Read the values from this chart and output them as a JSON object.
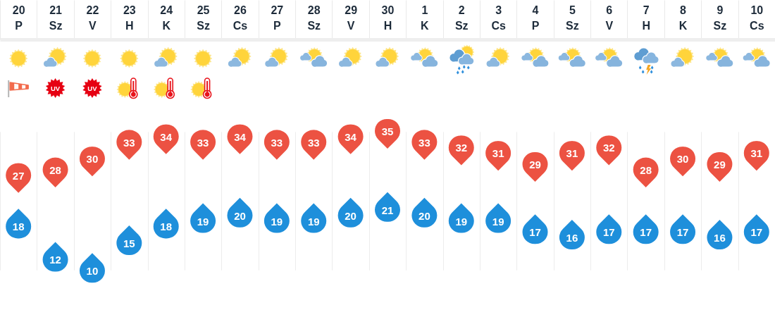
{
  "chart_data": {
    "type": "scatter",
    "categories": [
      "20 P",
      "21 Sz",
      "22 V",
      "23 H",
      "24 K",
      "25 Sz",
      "26 Cs",
      "27 P",
      "28 Sz",
      "29 V",
      "30 H",
      "1 K",
      "2 Sz",
      "3 Cs",
      "4 P",
      "5 Sz",
      "6 V",
      "7 H",
      "8 K",
      "9 Sz",
      "10 Cs"
    ],
    "series": [
      {
        "color": "#ec5242",
        "values": [
          27,
          28,
          30,
          33,
          34,
          33,
          34,
          33,
          33,
          34,
          35,
          33,
          32,
          31,
          29,
          31,
          32,
          28,
          30,
          29,
          31
        ]
      },
      {
        "color": "#1e8fdb",
        "values": [
          18,
          12,
          10,
          15,
          18,
          19,
          20,
          19,
          19,
          20,
          21,
          20,
          19,
          19,
          17,
          16,
          17,
          17,
          17,
          16,
          17
        ]
      }
    ],
    "data_labels": true,
    "grid": "x",
    "annotations": [
      "UV",
      "UV"
    ]
  }
}
